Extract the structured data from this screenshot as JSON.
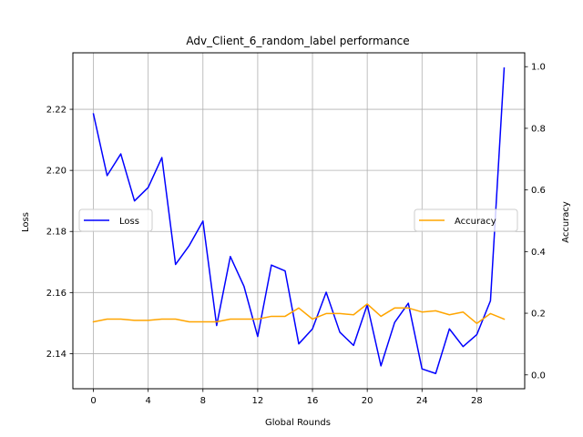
{
  "chart_data": {
    "type": "line",
    "title": "Adv_Client_6_random_label performance",
    "xlabel": "Global Rounds",
    "ylabel_left": "Loss",
    "ylabel_right": "Accuracy",
    "x": [
      0,
      1,
      2,
      3,
      4,
      5,
      6,
      7,
      8,
      9,
      10,
      11,
      12,
      13,
      14,
      15,
      16,
      17,
      18,
      19,
      20,
      21,
      22,
      23,
      24,
      25,
      26,
      27,
      28,
      29,
      30
    ],
    "xlim": [
      -1.5,
      31.5
    ],
    "xticks": [
      0,
      4,
      8,
      12,
      16,
      20,
      24,
      28
    ],
    "ylim_left": [
      2.1285,
      2.2385
    ],
    "yticks_left": [
      2.14,
      2.16,
      2.18,
      2.2,
      2.22
    ],
    "ylim_right": [
      -0.045,
      1.045
    ],
    "yticks_right": [
      0.0,
      0.2,
      0.4,
      0.6,
      0.8,
      1.0
    ],
    "grid": true,
    "series": [
      {
        "name": "Loss",
        "axis": "left",
        "color": "#0000ff",
        "legend_position": "center-left",
        "values": [
          2.2185,
          2.1983,
          2.2054,
          2.19,
          2.1944,
          2.2042,
          2.1692,
          2.1754,
          2.1834,
          2.1492,
          2.1718,
          2.162,
          2.1456,
          2.169,
          2.1671,
          2.1432,
          2.1481,
          2.1601,
          2.147,
          2.1427,
          2.156,
          2.136,
          2.1502,
          2.1565,
          2.135,
          2.1335,
          2.1481,
          2.1423,
          2.1462,
          2.1573,
          2.2335
        ]
      },
      {
        "name": "Accuracy",
        "axis": "right",
        "color": "#ffa500",
        "legend_position": "center-right",
        "values": [
          0.172,
          0.181,
          0.181,
          0.177,
          0.177,
          0.181,
          0.181,
          0.172,
          0.172,
          0.172,
          0.181,
          0.181,
          0.181,
          0.19,
          0.19,
          0.217,
          0.181,
          0.199,
          0.199,
          0.195,
          0.23,
          0.19,
          0.217,
          0.217,
          0.204,
          0.208,
          0.195,
          0.204,
          0.167,
          0.199,
          0.181
        ]
      }
    ]
  }
}
